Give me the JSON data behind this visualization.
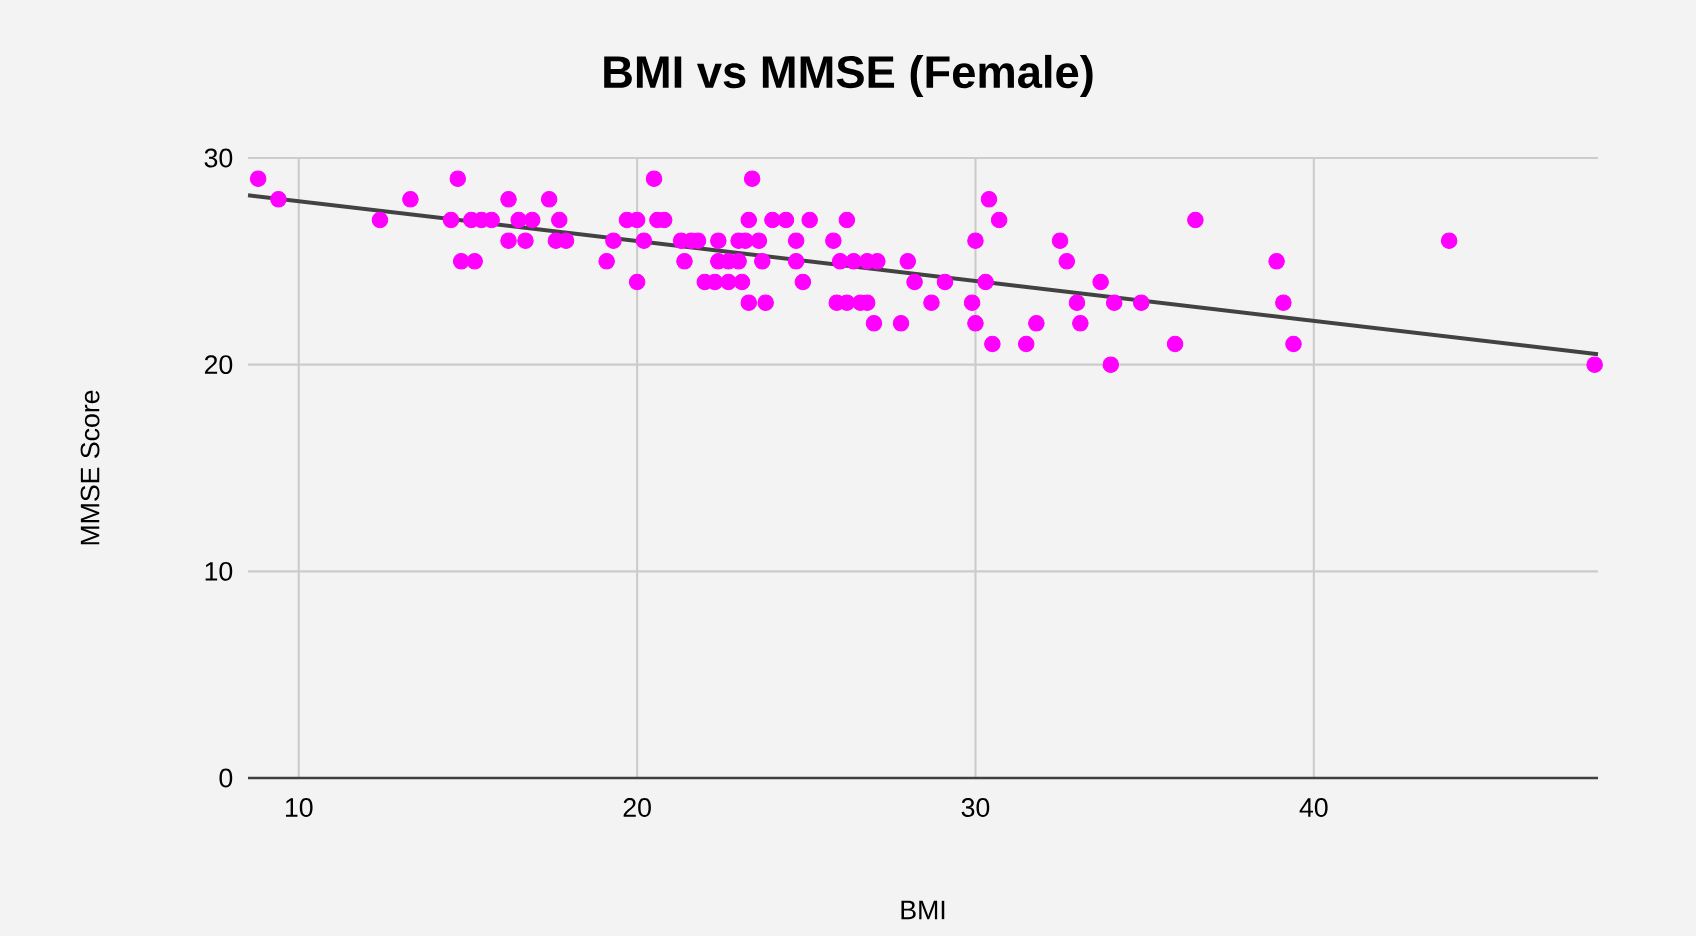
{
  "chart_data": {
    "type": "scatter",
    "title": "BMI vs MMSE (Female)",
    "xlabel": "BMI",
    "ylabel": "MMSE Score",
    "xlim": [
      8.5,
      48.4
    ],
    "xticks": [
      10,
      20,
      30,
      40
    ],
    "ylim": [
      0,
      30
    ],
    "yticks": [
      0,
      10,
      20,
      30
    ],
    "grid": true,
    "series": [
      {
        "marker": "circle",
        "color": "#ff00ff",
        "x": [
          8.8,
          9.4,
          12.4,
          13.3,
          14.7,
          14.5,
          14.8,
          15.2,
          15.1,
          15.4,
          15.7,
          16.2,
          16.2,
          16.5,
          16.9,
          16.7,
          17.4,
          17.7,
          17.6,
          17.9,
          19.1,
          19.3,
          19.7,
          20.0,
          20.0,
          20.2,
          20.5,
          20.6,
          20.8,
          21.3,
          21.6,
          21.8,
          21.4,
          22.0,
          22.3,
          22.4,
          22.4,
          22.7,
          23.0,
          22.7,
          23.1,
          23.0,
          23.2,
          23.4,
          23.3,
          23.6,
          23.7,
          23.3,
          23.8,
          24.0,
          24.4,
          24.7,
          24.7,
          24.9,
          25.1,
          25.8,
          26.2,
          26.0,
          26.4,
          26.8,
          27.1,
          25.9,
          26.2,
          26.6,
          26.8,
          27.0,
          27.8,
          28.0,
          28.2,
          29.1,
          28.7,
          29.9,
          30.0,
          30.0,
          30.3,
          30.4,
          30.5,
          30.7,
          31.5,
          31.8,
          32.5,
          32.7,
          33.0,
          33.1,
          33.7,
          34.1,
          34.0,
          34.9,
          35.9,
          36.5,
          38.9,
          39.1,
          39.4,
          44.0,
          48.3
        ],
        "values": [
          29,
          28,
          27,
          28,
          29,
          27,
          25,
          25,
          27,
          27,
          27,
          28,
          26,
          27,
          27,
          26,
          28,
          27,
          26,
          26,
          25,
          26,
          27,
          27,
          24,
          26,
          29,
          27,
          27,
          26,
          26,
          26,
          25,
          24,
          24,
          26,
          25,
          25,
          25,
          24,
          24,
          26,
          26,
          29,
          27,
          26,
          25,
          23,
          23,
          27,
          27,
          26,
          25,
          24,
          27,
          26,
          27,
          25,
          25,
          25,
          25,
          23,
          23,
          23,
          23,
          22,
          22,
          25,
          24,
          24,
          23,
          23,
          26,
          22,
          24,
          28,
          21,
          27,
          21,
          22,
          26,
          25,
          23,
          22,
          24,
          23,
          20,
          23,
          21,
          27,
          25,
          23,
          21,
          26,
          20
        ]
      },
      {
        "type": "line",
        "color": "#424242",
        "x": [
          8.5,
          48.4
        ],
        "values": [
          28.2,
          20.5
        ]
      }
    ]
  }
}
